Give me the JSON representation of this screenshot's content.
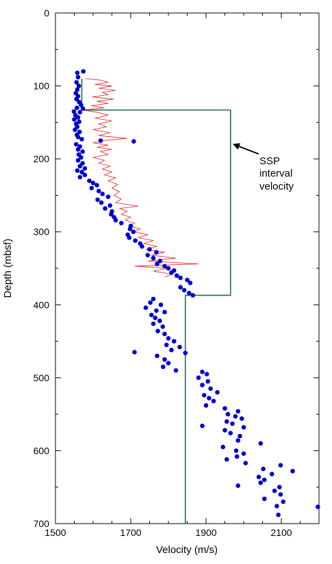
{
  "chart_data": {
    "type": "scatter",
    "title": "",
    "xlabel": "Velocity (m/s)",
    "ylabel": "Depth (mbsf)",
    "xlim": [
      1500,
      2200
    ],
    "ylim": [
      0,
      700
    ],
    "y_inverted": true,
    "x_ticks": [
      1500,
      1700,
      1900,
      2100
    ],
    "y_ticks": [
      0,
      100,
      200,
      300,
      400,
      500,
      600,
      700
    ],
    "grid": false,
    "annotation": {
      "lines": [
        "SSP",
        "interval",
        "velocity"
      ],
      "target": [
        1960,
        172
      ]
    },
    "series": [
      {
        "kind": "interval",
        "color": "#1f6b4e",
        "points": [
          [
            1570,
            90
          ],
          [
            1570,
            133
          ],
          [
            1965,
            133
          ],
          [
            1965,
            387
          ],
          [
            1845,
            387
          ],
          [
            1845,
            700
          ]
        ]
      },
      {
        "kind": "log",
        "color": "#e41a1c",
        "points": [
          [
            1580,
            90
          ],
          [
            1620,
            92
          ],
          [
            1640,
            95
          ],
          [
            1605,
            98
          ],
          [
            1650,
            100
          ],
          [
            1615,
            103
          ],
          [
            1660,
            106
          ],
          [
            1625,
            109
          ],
          [
            1640,
            112
          ],
          [
            1598,
            115
          ],
          [
            1655,
            118
          ],
          [
            1610,
            121
          ],
          [
            1640,
            124
          ],
          [
            1595,
            127
          ],
          [
            1630,
            130
          ],
          [
            1570,
            133
          ],
          [
            1610,
            136
          ],
          [
            1640,
            140
          ],
          [
            1605,
            144
          ],
          [
            1650,
            148
          ],
          [
            1615,
            152
          ],
          [
            1635,
            156
          ],
          [
            1600,
            160
          ],
          [
            1645,
            164
          ],
          [
            1615,
            168
          ],
          [
            1690,
            172
          ],
          [
            1625,
            175
          ],
          [
            1600,
            178
          ],
          [
            1640,
            181
          ],
          [
            1610,
            184
          ],
          [
            1650,
            187
          ],
          [
            1620,
            190
          ],
          [
            1640,
            194
          ],
          [
            1600,
            198
          ],
          [
            1630,
            202
          ],
          [
            1615,
            206
          ],
          [
            1645,
            210
          ],
          [
            1625,
            214
          ],
          [
            1650,
            218
          ],
          [
            1630,
            222
          ],
          [
            1660,
            226
          ],
          [
            1640,
            230
          ],
          [
            1665,
            235
          ],
          [
            1650,
            240
          ],
          [
            1670,
            245
          ],
          [
            1655,
            250
          ],
          [
            1675,
            255
          ],
          [
            1660,
            260
          ],
          [
            1720,
            265
          ],
          [
            1670,
            268
          ],
          [
            1690,
            272
          ],
          [
            1675,
            276
          ],
          [
            1700,
            280
          ],
          [
            1685,
            284
          ],
          [
            1710,
            288
          ],
          [
            1695,
            292
          ],
          [
            1725,
            296
          ],
          [
            1710,
            300
          ],
          [
            1745,
            304
          ],
          [
            1720,
            308
          ],
          [
            1760,
            312
          ],
          [
            1735,
            316
          ],
          [
            1770,
            320
          ],
          [
            1740,
            324
          ],
          [
            1790,
            328
          ],
          [
            1755,
            332
          ],
          [
            1820,
            336
          ],
          [
            1745,
            340
          ],
          [
            1880,
            344
          ],
          [
            1710,
            347
          ],
          [
            1800,
            350
          ],
          [
            1760,
            354
          ],
          [
            1810,
            358
          ],
          [
            1790,
            362
          ]
        ]
      },
      {
        "kind": "core",
        "color": "#0000cc",
        "points": [
          [
            1558,
            82
          ],
          [
            1574,
            80
          ],
          [
            1560,
            88
          ],
          [
            1556,
            95
          ],
          [
            1562,
            100
          ],
          [
            1558,
            105
          ],
          [
            1554,
            110
          ],
          [
            1560,
            114
          ],
          [
            1556,
            118
          ],
          [
            1563,
            122
          ],
          [
            1568,
            126
          ],
          [
            1557,
            130
          ],
          [
            1573,
            131
          ],
          [
            1549,
            135
          ],
          [
            1565,
            136
          ],
          [
            1553,
            140
          ],
          [
            1560,
            143
          ],
          [
            1550,
            146
          ],
          [
            1563,
            149
          ],
          [
            1555,
            152
          ],
          [
            1558,
            156
          ],
          [
            1552,
            160
          ],
          [
            1564,
            163
          ],
          [
            1557,
            167
          ],
          [
            1560,
            170
          ],
          [
            1570,
            173
          ],
          [
            1620,
            175
          ],
          [
            1708,
            176
          ],
          [
            1555,
            180
          ],
          [
            1565,
            183
          ],
          [
            1560,
            187
          ],
          [
            1572,
            190
          ],
          [
            1562,
            194
          ],
          [
            1568,
            198
          ],
          [
            1560,
            202
          ],
          [
            1572,
            206
          ],
          [
            1565,
            210
          ],
          [
            1578,
            213
          ],
          [
            1558,
            216
          ],
          [
            1570,
            218
          ],
          [
            1578,
            222
          ],
          [
            1565,
            225
          ],
          [
            1590,
            230
          ],
          [
            1600,
            233
          ],
          [
            1610,
            236
          ],
          [
            1596,
            240
          ],
          [
            1615,
            244
          ],
          [
            1625,
            248
          ],
          [
            1640,
            252
          ],
          [
            1612,
            256
          ],
          [
            1622,
            260
          ],
          [
            1645,
            264
          ],
          [
            1632,
            268
          ],
          [
            1650,
            272
          ],
          [
            1648,
            276
          ],
          [
            1656,
            280
          ],
          [
            1660,
            284
          ],
          [
            1675,
            288
          ],
          [
            1700,
            292
          ],
          [
            1698,
            296
          ],
          [
            1707,
            300
          ],
          [
            1692,
            304
          ],
          [
            1696,
            308
          ],
          [
            1712,
            312
          ],
          [
            1725,
            316
          ],
          [
            1730,
            320
          ],
          [
            1750,
            324
          ],
          [
            1768,
            328
          ],
          [
            1745,
            332
          ],
          [
            1760,
            336
          ],
          [
            1778,
            340
          ],
          [
            1770,
            344
          ],
          [
            1790,
            347
          ],
          [
            1800,
            350
          ],
          [
            1815,
            353
          ],
          [
            1808,
            356
          ],
          [
            1822,
            360
          ],
          [
            1832,
            363
          ],
          [
            1850,
            366
          ],
          [
            1858,
            370
          ],
          [
            1832,
            376
          ],
          [
            1842,
            380
          ],
          [
            1855,
            384
          ],
          [
            1865,
            387
          ],
          [
            1760,
            392
          ],
          [
            1752,
            397
          ],
          [
            1780,
            400
          ],
          [
            1740,
            404
          ],
          [
            1768,
            408
          ],
          [
            1790,
            410
          ],
          [
            1755,
            414
          ],
          [
            1765,
            418
          ],
          [
            1777,
            422
          ],
          [
            1760,
            426
          ],
          [
            1785,
            430
          ],
          [
            1772,
            436
          ],
          [
            1790,
            440
          ],
          [
            1800,
            446
          ],
          [
            1815,
            450
          ],
          [
            1795,
            455
          ],
          [
            1830,
            458
          ],
          [
            1808,
            462
          ],
          [
            1710,
            465
          ],
          [
            1845,
            466
          ],
          [
            1770,
            470
          ],
          [
            1790,
            475
          ],
          [
            1800,
            480
          ],
          [
            1786,
            485
          ],
          [
            1820,
            490
          ],
          [
            1890,
            492
          ],
          [
            1902,
            495
          ],
          [
            1880,
            500
          ],
          [
            1905,
            505
          ],
          [
            1890,
            510
          ],
          [
            1912,
            515
          ],
          [
            1930,
            520
          ],
          [
            1895,
            524
          ],
          [
            1908,
            528
          ],
          [
            1920,
            532
          ],
          [
            1900,
            538
          ],
          [
            1950,
            542
          ],
          [
            1985,
            546
          ],
          [
            1958,
            550
          ],
          [
            1978,
            553
          ],
          [
            1995,
            556
          ],
          [
            1955,
            560
          ],
          [
            1970,
            563
          ],
          [
            1890,
            566
          ],
          [
            2000,
            568
          ],
          [
            1950,
            572
          ],
          [
            1965,
            576
          ],
          [
            1990,
            580
          ],
          [
            1985,
            586
          ],
          [
            2045,
            590
          ],
          [
            1945,
            595
          ],
          [
            1980,
            600
          ],
          [
            2000,
            604
          ],
          [
            1982,
            608
          ],
          [
            1955,
            612
          ],
          [
            2005,
            617
          ],
          [
            2098,
            620
          ],
          [
            2052,
            625
          ],
          [
            2130,
            628
          ],
          [
            2075,
            632
          ],
          [
            2040,
            636
          ],
          [
            2055,
            640
          ],
          [
            2045,
            644
          ],
          [
            1985,
            648
          ],
          [
            2095,
            650
          ],
          [
            2082,
            655
          ],
          [
            2098,
            660
          ],
          [
            2055,
            666
          ],
          [
            2105,
            670
          ],
          [
            2088,
            676
          ],
          [
            2197,
            677
          ],
          [
            2092,
            688
          ]
        ]
      }
    ]
  }
}
